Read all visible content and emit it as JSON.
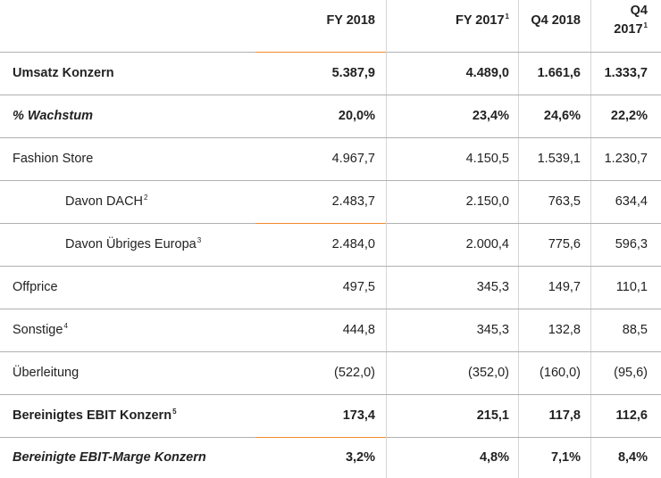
{
  "colors": {
    "accent_orange": "#f08a2c",
    "rule_grey": "#b0b0b0",
    "text": "#222222"
  },
  "header": {
    "fy2018": "FY 2018",
    "fy2017": "FY 2017",
    "fy2017_sup": "1",
    "q42018": "Q4 2018",
    "q42017_line1": "Q4",
    "q42017_line2": "2017",
    "q42017_sup": "1"
  },
  "rows": [
    {
      "label": "Umsatz Konzern",
      "sup": "",
      "values": [
        "5.387,9",
        "4.489,0",
        "1.661,6",
        "1.333,7"
      ]
    },
    {
      "label": "% Wachstum",
      "sup": "",
      "values": [
        "20,0%",
        "23,4%",
        "24,6%",
        "22,2%"
      ]
    },
    {
      "label": "Fashion Store",
      "sup": "",
      "values": [
        "4.967,7",
        "4.150,5",
        "1.539,1",
        "1.230,7"
      ]
    },
    {
      "label": "Davon DACH",
      "sup": "2",
      "values": [
        "2.483,7",
        "2.150,0",
        "763,5",
        "634,4"
      ]
    },
    {
      "label": "Davon Übriges Europa",
      "sup": "3",
      "values": [
        "2.484,0",
        "2.000,4",
        "775,6",
        "596,3"
      ]
    },
    {
      "label": "Offprice",
      "sup": "",
      "values": [
        "497,5",
        "345,3",
        "149,7",
        "110,1"
      ]
    },
    {
      "label": "Sonstige",
      "sup": "4",
      "values": [
        "444,8",
        "345,3",
        "132,8",
        "88,5"
      ]
    },
    {
      "label": "Überleitung",
      "sup": "",
      "values": [
        "(522,0)",
        "(352,0)",
        "(160,0)",
        "(95,6)"
      ]
    },
    {
      "label": "Bereinigtes EBIT Konzern",
      "sup": "5",
      "values": [
        "173,4",
        "215,1",
        "117,8",
        "112,6"
      ]
    },
    {
      "label": "Bereinigte EBIT-Marge Konzern",
      "sup": "",
      "values": [
        "3,2%",
        "4,8%",
        "7,1%",
        "8,4%"
      ]
    }
  ]
}
